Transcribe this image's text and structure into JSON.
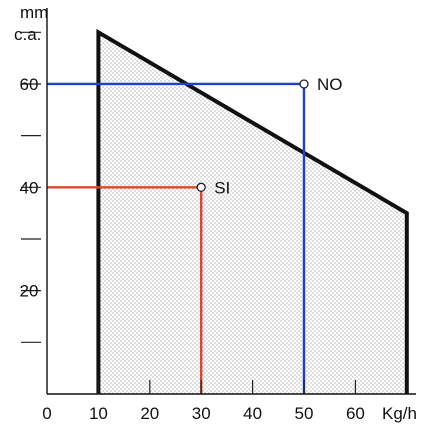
{
  "chart_data": {
    "type": "area",
    "ylabel_line1": "mm",
    "ylabel_line2": "c.a.",
    "xlabel": "Kg/h",
    "xlim": [
      0,
      70
    ],
    "ylim": [
      0,
      70
    ],
    "x_ticks": [
      0,
      10,
      20,
      30,
      40,
      50,
      60
    ],
    "x_tick_labels": [
      "0",
      "10",
      "20",
      "30",
      "40",
      "50",
      "60"
    ],
    "y_ticks_labeled": [
      20,
      40,
      60
    ],
    "y_tick_labels": [
      "20",
      "40",
      "60"
    ],
    "y_ticks_unlabeled": [
      10,
      30,
      50,
      70
    ],
    "region": {
      "name": "",
      "points": [
        [
          10,
          0
        ],
        [
          10,
          70
        ],
        [
          70,
          35
        ],
        [
          70,
          0
        ]
      ],
      "fill": "stippled gray",
      "border_color": "#111111"
    },
    "markers": [
      {
        "label": "NO",
        "x": 50,
        "y": 60,
        "color": "#1f3fd1"
      },
      {
        "label": "SI",
        "x": 30,
        "y": 40,
        "color": "#e8432a"
      }
    ],
    "grid": false,
    "legend": "none"
  }
}
